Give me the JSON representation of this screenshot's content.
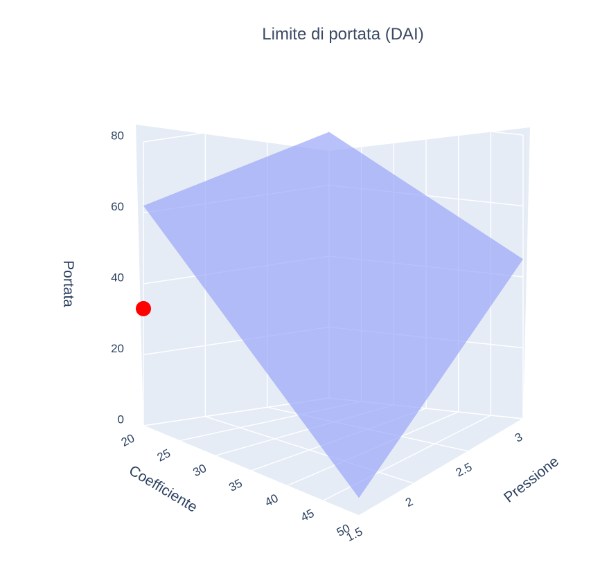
{
  "chart_data": {
    "type": "scatter",
    "title": "Limite di portata (DAI)",
    "axes": {
      "x": {
        "label": "Coefficiente",
        "ticks": [
          "20",
          "25",
          "30",
          "35",
          "40",
          "45",
          "50"
        ],
        "range": [
          20,
          50
        ]
      },
      "y": {
        "label": "Pressione",
        "ticks": [
          "1.5",
          "2",
          "2.5",
          "3"
        ],
        "range": [
          1.5,
          3
        ]
      },
      "z": {
        "label": "Portata",
        "ticks": [
          "0",
          "20",
          "40",
          "60",
          "80"
        ],
        "range": [
          0,
          80
        ]
      }
    },
    "series": [
      {
        "type": "surface",
        "points": [
          {
            "x": 20,
            "y": 1.5,
            "z": 62
          },
          {
            "x": 20,
            "y": 3,
            "z": 75
          },
          {
            "x": 50,
            "y": 3,
            "z": 45
          },
          {
            "x": 50,
            "y": 1.5,
            "z": 5
          }
        ],
        "color": "#9aa6f8"
      },
      {
        "type": "scatter",
        "points": [
          {
            "x": 20,
            "y": 1.5,
            "z": 33
          }
        ],
        "color": "#ff0000"
      }
    ],
    "grid": true,
    "background": "#e5ecf6"
  }
}
